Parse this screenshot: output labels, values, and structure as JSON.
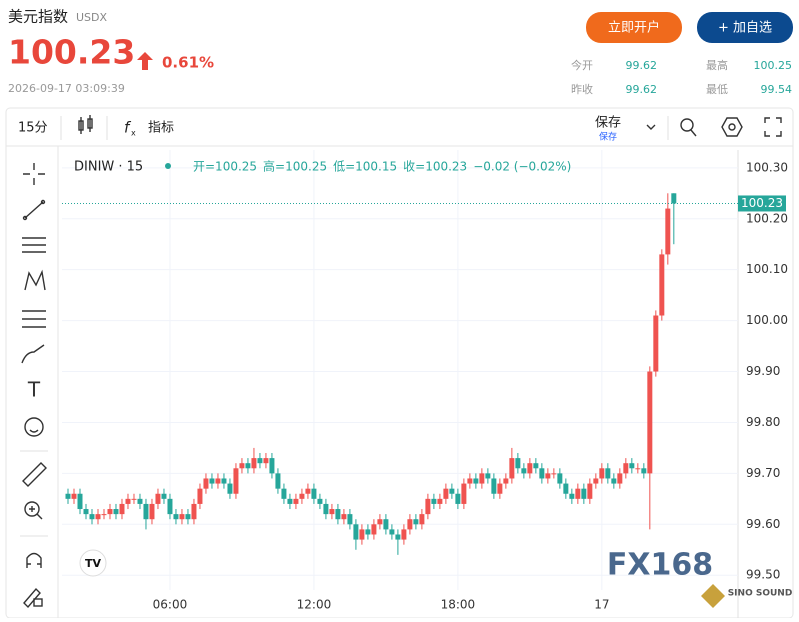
{
  "header": {
    "title": "美元指数",
    "symbol": "USDX",
    "price": "100.23",
    "change": "0.61%",
    "datetime": "2026-09-17 03:09:39",
    "open_account": "立即开户",
    "add_watch": "+ 加自选",
    "stats": [
      {
        "label": "今开",
        "value": "99.62"
      },
      {
        "label": "最高",
        "value": "100.25"
      },
      {
        "label": "昨收",
        "value": "99.62"
      },
      {
        "label": "最低",
        "value": "99.54"
      }
    ]
  },
  "toolbar": {
    "interval": "15分",
    "indicators": "指标",
    "save": "保存",
    "save_sub": "保存"
  },
  "watermark": {
    "logo": "FX168",
    "brand": "SINO SOUND"
  },
  "chart_data": {
    "type": "candlestick",
    "legend_symbol": "DINIW · 15",
    "legend_items": [
      "开=100.25",
      "高=100.25",
      "低=100.15",
      "收=100.23",
      "−0.02 (−0.02%)"
    ],
    "last_label": "100.23",
    "up_color": "#ef5350",
    "down_color": "#26a69a",
    "grid": true,
    "ylim": [
      99.471,
      100.335
    ],
    "yticks": [
      {
        "value": 99.5,
        "label": "99.50"
      },
      {
        "value": 99.6,
        "label": "99.60"
      },
      {
        "value": 99.7,
        "label": "99.70"
      },
      {
        "value": 99.8,
        "label": "99.80"
      },
      {
        "value": 99.9,
        "label": "99.90"
      },
      {
        "value": 100.0,
        "label": "100.00"
      },
      {
        "value": 100.1,
        "label": "100.10"
      },
      {
        "value": 100.2,
        "label": "100.20"
      },
      {
        "value": 100.3,
        "label": "100.30"
      }
    ],
    "xlim": [
      -1,
      111.7
    ],
    "xticks": [
      {
        "value": 17,
        "label": "06:00"
      },
      {
        "value": 41,
        "label": "12:00"
      },
      {
        "value": 65,
        "label": "18:00"
      },
      {
        "value": 89,
        "label": "17"
      }
    ],
    "candles": [
      [
        99.66,
        99.67,
        99.64,
        99.65
      ],
      [
        99.65,
        99.67,
        99.64,
        99.66
      ],
      [
        99.66,
        99.67,
        99.62,
        99.63
      ],
      [
        99.63,
        99.64,
        99.61,
        99.62
      ],
      [
        99.62,
        99.63,
        99.6,
        99.61
      ],
      [
        99.61,
        99.63,
        99.6,
        99.62
      ],
      [
        99.62,
        99.63,
        99.61,
        99.62
      ],
      [
        99.62,
        99.64,
        99.61,
        99.63
      ],
      [
        99.63,
        99.64,
        99.61,
        99.62
      ],
      [
        99.62,
        99.65,
        99.61,
        99.64
      ],
      [
        99.64,
        99.66,
        99.63,
        99.65
      ],
      [
        99.65,
        99.66,
        99.64,
        99.65
      ],
      [
        99.65,
        99.66,
        99.63,
        99.64
      ],
      [
        99.64,
        99.65,
        99.59,
        99.61
      ],
      [
        99.61,
        99.65,
        99.6,
        99.64
      ],
      [
        99.64,
        99.67,
        99.63,
        99.66
      ],
      [
        99.66,
        99.67,
        99.64,
        99.65
      ],
      [
        99.65,
        99.66,
        99.61,
        99.62
      ],
      [
        99.62,
        99.63,
        99.6,
        99.61
      ],
      [
        99.61,
        99.63,
        99.6,
        99.62
      ],
      [
        99.62,
        99.63,
        99.6,
        99.61
      ],
      [
        99.61,
        99.65,
        99.6,
        99.64
      ],
      [
        99.64,
        99.68,
        99.63,
        99.67
      ],
      [
        99.67,
        99.7,
        99.66,
        99.69
      ],
      [
        99.69,
        99.7,
        99.67,
        99.68
      ],
      [
        99.68,
        99.7,
        99.67,
        99.69
      ],
      [
        99.69,
        99.7,
        99.67,
        99.68
      ],
      [
        99.68,
        99.69,
        99.65,
        99.66
      ],
      [
        99.66,
        99.72,
        99.65,
        99.71
      ],
      [
        99.71,
        99.73,
        99.7,
        99.72
      ],
      [
        99.72,
        99.73,
        99.7,
        99.71
      ],
      [
        99.71,
        99.75,
        99.7,
        99.73
      ],
      [
        99.73,
        99.74,
        99.71,
        99.72
      ],
      [
        99.72,
        99.74,
        99.71,
        99.73
      ],
      [
        99.73,
        99.74,
        99.69,
        99.7
      ],
      [
        99.7,
        99.71,
        99.66,
        99.67
      ],
      [
        99.67,
        99.68,
        99.64,
        99.65
      ],
      [
        99.65,
        99.66,
        99.63,
        99.64
      ],
      [
        99.64,
        99.66,
        99.63,
        99.65
      ],
      [
        99.65,
        99.67,
        99.64,
        99.66
      ],
      [
        99.66,
        99.68,
        99.65,
        99.67
      ],
      [
        99.67,
        99.68,
        99.64,
        99.65
      ],
      [
        99.65,
        99.66,
        99.63,
        99.64
      ],
      [
        99.64,
        99.65,
        99.61,
        99.62
      ],
      [
        99.62,
        99.64,
        99.61,
        99.63
      ],
      [
        99.63,
        99.64,
        99.6,
        99.61
      ],
      [
        99.61,
        99.63,
        99.6,
        99.62
      ],
      [
        99.62,
        99.63,
        99.59,
        99.6
      ],
      [
        99.6,
        99.61,
        99.55,
        99.57
      ],
      [
        99.57,
        99.6,
        99.56,
        99.59
      ],
      [
        99.59,
        99.6,
        99.57,
        99.58
      ],
      [
        99.58,
        99.61,
        99.57,
        99.6
      ],
      [
        99.6,
        99.62,
        99.59,
        99.61
      ],
      [
        99.61,
        99.62,
        99.58,
        99.59
      ],
      [
        99.59,
        99.6,
        99.57,
        99.58
      ],
      [
        99.58,
        99.59,
        99.54,
        99.57
      ],
      [
        99.57,
        99.6,
        99.56,
        99.59
      ],
      [
        99.59,
        99.62,
        99.58,
        99.61
      ],
      [
        99.61,
        99.62,
        99.59,
        99.6
      ],
      [
        99.6,
        99.63,
        99.59,
        99.62
      ],
      [
        99.62,
        99.66,
        99.61,
        99.65
      ],
      [
        99.65,
        99.66,
        99.63,
        99.64
      ],
      [
        99.64,
        99.66,
        99.63,
        99.65
      ],
      [
        99.65,
        99.68,
        99.64,
        99.67
      ],
      [
        99.67,
        99.68,
        99.65,
        99.66
      ],
      [
        99.66,
        99.67,
        99.63,
        99.64
      ],
      [
        99.64,
        99.69,
        99.63,
        99.68
      ],
      [
        99.68,
        99.7,
        99.67,
        99.69
      ],
      [
        99.69,
        99.7,
        99.67,
        99.68
      ],
      [
        99.68,
        99.71,
        99.67,
        99.7
      ],
      [
        99.7,
        99.71,
        99.68,
        99.69
      ],
      [
        99.69,
        99.7,
        99.65,
        99.66
      ],
      [
        99.66,
        99.69,
        99.65,
        99.68
      ],
      [
        99.68,
        99.7,
        99.67,
        99.69
      ],
      [
        99.69,
        99.75,
        99.68,
        99.73
      ],
      [
        99.73,
        99.74,
        99.7,
        99.71
      ],
      [
        99.71,
        99.72,
        99.69,
        99.7
      ],
      [
        99.7,
        99.73,
        99.69,
        99.72
      ],
      [
        99.72,
        99.73,
        99.7,
        99.71
      ],
      [
        99.71,
        99.72,
        99.68,
        99.69
      ],
      [
        99.69,
        99.71,
        99.68,
        99.7
      ],
      [
        99.7,
        99.71,
        99.69,
        99.7
      ],
      [
        99.7,
        99.71,
        99.67,
        99.68
      ],
      [
        99.68,
        99.69,
        99.65,
        99.66
      ],
      [
        99.66,
        99.67,
        99.64,
        99.65
      ],
      [
        99.65,
        99.68,
        99.64,
        99.67
      ],
      [
        99.67,
        99.68,
        99.64,
        99.65
      ],
      [
        99.65,
        99.69,
        99.64,
        99.68
      ],
      [
        99.68,
        99.7,
        99.67,
        99.69
      ],
      [
        99.69,
        99.72,
        99.68,
        99.71
      ],
      [
        99.71,
        99.72,
        99.68,
        99.69
      ],
      [
        99.69,
        99.7,
        99.67,
        99.68
      ],
      [
        99.68,
        99.71,
        99.67,
        99.7
      ],
      [
        99.7,
        99.73,
        99.69,
        99.72
      ],
      [
        99.72,
        99.73,
        99.7,
        99.71
      ],
      [
        99.71,
        99.72,
        99.7,
        99.71
      ],
      [
        99.71,
        99.72,
        99.69,
        99.7
      ],
      [
        99.7,
        99.91,
        99.59,
        99.9
      ],
      [
        99.9,
        100.02,
        99.89,
        100.01
      ],
      [
        100.01,
        100.14,
        100.0,
        100.13
      ],
      [
        100.13,
        100.25,
        100.11,
        100.22
      ],
      [
        100.25,
        100.25,
        100.15,
        100.23
      ]
    ]
  }
}
